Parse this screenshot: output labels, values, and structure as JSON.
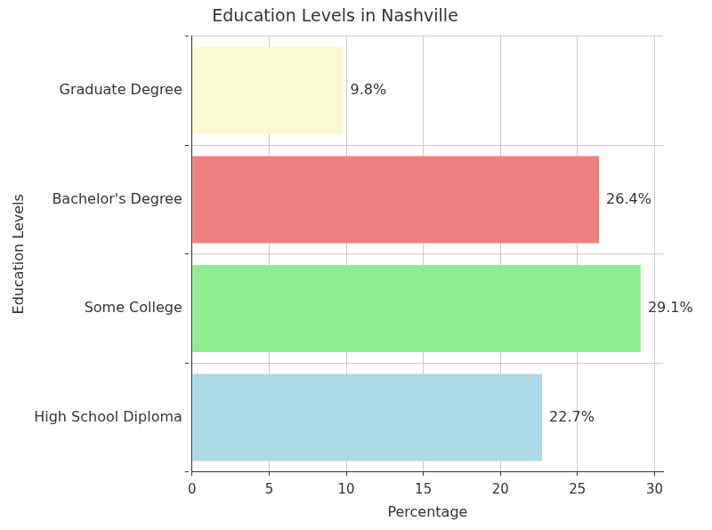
{
  "chart_data": {
    "type": "bar",
    "orientation": "horizontal",
    "title": "Education Levels in Nashville",
    "x_label": "Percentage",
    "y_label": "Education Levels",
    "categories": [
      "High School Diploma",
      "Some College",
      "Bachelor's Degree",
      "Graduate Degree"
    ],
    "values": [
      22.7,
      29.1,
      26.4,
      9.8
    ],
    "value_labels": [
      "22.7%",
      "29.1%",
      "26.4%",
      "9.8%"
    ],
    "data_labels": true,
    "colors": [
      "#add8e6",
      "#90ee90",
      "#f08080",
      "#fafad2"
    ],
    "xlim": [
      0,
      30.55
    ],
    "xticks": [
      0,
      5,
      10,
      15,
      20,
      25,
      30
    ],
    "grid": true
  }
}
